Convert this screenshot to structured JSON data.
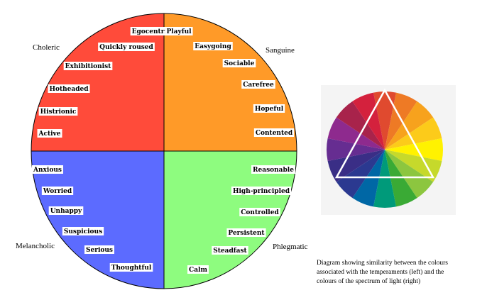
{
  "temperament_wheel": {
    "quadrants": [
      {
        "name": "Choleric",
        "color": "#FF4B3A",
        "traits": [
          "Egocentric",
          "Quickly roused",
          "Exhibitionist",
          "Hotheaded",
          "Histrionic",
          "Active"
        ]
      },
      {
        "name": "Sanguine",
        "color": "#FF9A28",
        "traits": [
          "Playful",
          "Easygoing",
          "Sociable",
          "Carefree",
          "Hopeful",
          "Contented"
        ]
      },
      {
        "name": "Melancholic",
        "color": "#5C6BFF",
        "traits": [
          "Anxious",
          "Worried",
          "Unhappy",
          "Suspicious",
          "Serious",
          "Thoughtful"
        ]
      },
      {
        "name": "Phlegmatic",
        "color": "#8EFC7F",
        "traits": [
          "Reasonable",
          "High-principled",
          "Controlled",
          "Persistent",
          "Steadfast",
          "Calm"
        ]
      }
    ]
  },
  "spectrum_wheel": {
    "segment_colors": [
      "#E04A2F",
      "#EE7A25",
      "#F7A21D",
      "#FCCB1A",
      "#FFF200",
      "#C6D92B",
      "#8CC63F",
      "#3AAA35",
      "#009A7A",
      "#0067A5",
      "#2B3990",
      "#3A2E86",
      "#662D91",
      "#8E2A8E",
      "#A8234B",
      "#D4213D"
    ]
  },
  "caption": {
    "lines": [
      "Diagram showing similarity between the colours",
      "associated with the temperaments (left)  and the",
      "colours of the spectrum of light (right)"
    ]
  }
}
